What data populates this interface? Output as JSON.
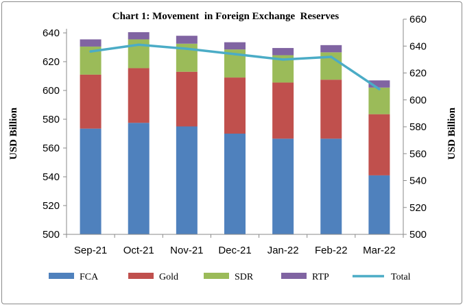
{
  "chart_data": {
    "type": "bar",
    "stacked": true,
    "title": "Chart 1: Movement  in Foreign Exchange  Reserves",
    "ylabel": "USD Billion",
    "y2label": "USD Billion",
    "ylim": [
      500,
      640
    ],
    "y2lim": [
      500,
      660
    ],
    "yticks": [
      500,
      520,
      540,
      560,
      580,
      600,
      620,
      640
    ],
    "y2ticks": [
      500,
      520,
      540,
      560,
      580,
      600,
      620,
      640,
      660
    ],
    "categories": [
      "Sep-21",
      "Oct-21",
      "Nov-21",
      "Dec-21",
      "Jan-22",
      "Feb-22",
      "Mar-22"
    ],
    "series": [
      {
        "name": "FCA",
        "color": "#4f81bd",
        "values": [
          573.5,
          577.5,
          575.0,
          570.0,
          566.5,
          566.5,
          541.0
        ]
      },
      {
        "name": "Gold",
        "color": "#c0504d",
        "values": [
          37.5,
          38.0,
          38.0,
          39.0,
          39.0,
          41.0,
          42.5
        ]
      },
      {
        "name": "SDR",
        "color": "#9bbb59",
        "values": [
          19.5,
          20.0,
          19.5,
          19.5,
          19.0,
          19.0,
          18.5
        ]
      },
      {
        "name": "RTP",
        "color": "#8064a2",
        "values": [
          5.0,
          5.0,
          5.5,
          5.0,
          5.0,
          5.0,
          5.0
        ]
      }
    ],
    "line": {
      "name": "Total",
      "color": "#4bacc6",
      "axis": "secondary",
      "values": [
        636,
        641,
        638,
        634,
        630,
        632,
        608
      ]
    },
    "legend_position": "bottom",
    "grid": false
  }
}
